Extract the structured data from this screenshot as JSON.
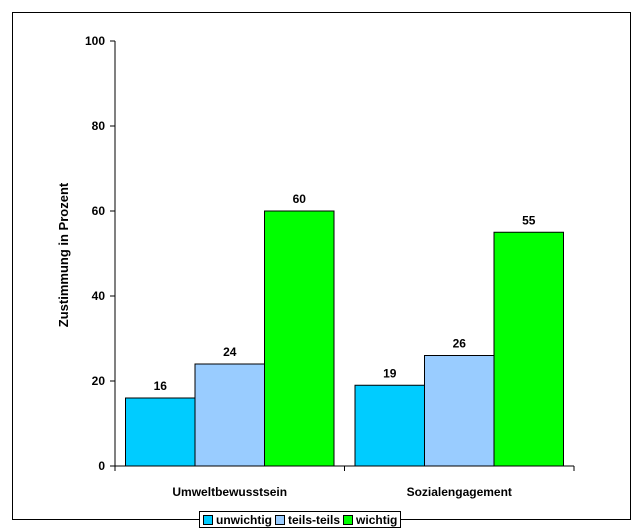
{
  "chart_data": {
    "type": "bar",
    "categories": [
      "Umweltbewusstsein",
      "Sozialengagement"
    ],
    "series": [
      {
        "name": "unwichtig",
        "values": [
          16,
          19
        ],
        "color": "#00ccff"
      },
      {
        "name": "teils-teils",
        "values": [
          24,
          26
        ],
        "color": "#99ccff"
      },
      {
        "name": "wichtig",
        "values": [
          60,
          55
        ],
        "color": "#00ff00"
      }
    ],
    "ylabel": "Zustimmung in Prozent",
    "xlabel": "",
    "ylim": [
      0,
      100
    ],
    "yticks": [
      0,
      20,
      40,
      60,
      80,
      100
    ],
    "grid": false,
    "legend_position": "bottom"
  }
}
